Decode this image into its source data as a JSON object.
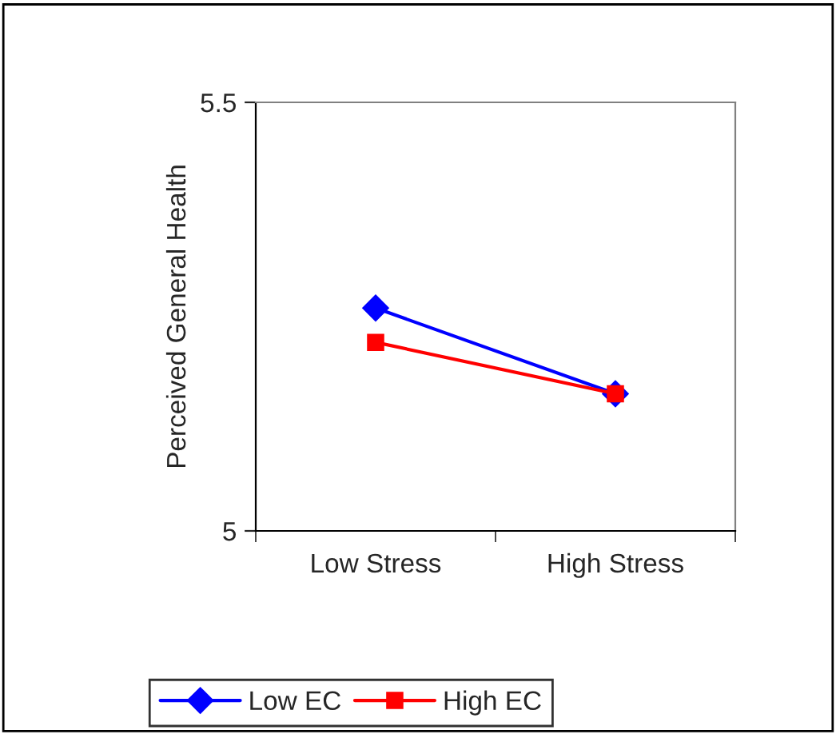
{
  "chart_data": {
    "type": "line",
    "ylabel": "Perceived General Health",
    "categories": [
      "Low Stress",
      "High Stress"
    ],
    "series": [
      {
        "name": "Low EC",
        "color": "#0000ff",
        "marker": "diamond",
        "values": [
          5.26,
          5.16
        ]
      },
      {
        "name": "High EC",
        "color": "#ff0000",
        "marker": "square",
        "values": [
          5.22,
          5.16
        ]
      }
    ],
    "ylim": [
      5,
      5.5
    ],
    "yticks": [
      5,
      5.5
    ],
    "grid": false,
    "legend": "bottom",
    "line_style": "solid"
  }
}
